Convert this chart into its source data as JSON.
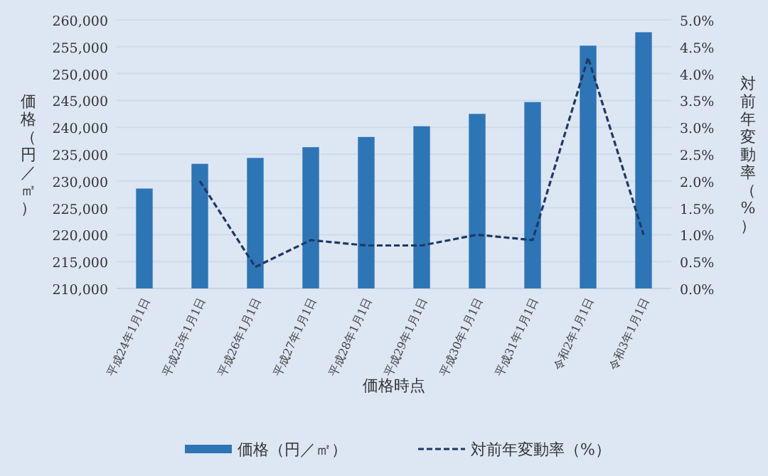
{
  "chart_data": {
    "type": "bar",
    "xlabel": "価格時点",
    "ylabel": "価格（円／㎡）",
    "y2label": "対前年変動率（%）",
    "categories": [
      "平成24年1月1日",
      "平成25年1月1日",
      "平成26年1月1日",
      "平成27年1月1日",
      "平成28年1月1日",
      "平成29年1月1日",
      "平成30年1月1日",
      "平成31年1月1日",
      "令和2年1月1日",
      "令和3年1月1日"
    ],
    "series": [
      {
        "name": "価格（円／㎡）",
        "color": "#2e75b6",
        "values": [
          228600,
          233200,
          234300,
          236300,
          238200,
          240200,
          242500,
          244700,
          255200,
          257700
        ]
      },
      {
        "name": "対前年変動率（%）",
        "type": "line",
        "axis": "y2",
        "color": "#1f3864",
        "line_style": "dashed",
        "marker": "none",
        "values": [
          null,
          2.0,
          0.4,
          0.9,
          0.8,
          0.8,
          1.0,
          0.9,
          4.3,
          1.0
        ]
      }
    ],
    "ylim": [
      210000,
      260000
    ],
    "yticks": [
      {
        "value": 210000,
        "label": "210,000"
      },
      {
        "value": 215000,
        "label": "215,000"
      },
      {
        "value": 220000,
        "label": "220,000"
      },
      {
        "value": 225000,
        "label": "225,000"
      },
      {
        "value": 230000,
        "label": "230,000"
      },
      {
        "value": 235000,
        "label": "235,000"
      },
      {
        "value": 240000,
        "label": "240,000"
      },
      {
        "value": 245000,
        "label": "245,000"
      },
      {
        "value": 250000,
        "label": "250,000"
      },
      {
        "value": 255000,
        "label": "255,000"
      },
      {
        "value": 260000,
        "label": "260,000"
      }
    ],
    "y2lim": [
      0,
      5
    ],
    "y2ticks": [
      {
        "value": 0,
        "label": "0.0%"
      },
      {
        "value": 0.5,
        "label": "0.5%"
      },
      {
        "value": 1,
        "label": "1.0%"
      },
      {
        "value": 1.5,
        "label": "1.5%"
      },
      {
        "value": 2,
        "label": "2.0%"
      },
      {
        "value": 2.5,
        "label": "2.5%"
      },
      {
        "value": 3,
        "label": "3.0%"
      },
      {
        "value": 3.5,
        "label": "3.5%"
      },
      {
        "value": 4,
        "label": "4.0%"
      },
      {
        "value": 4.5,
        "label": "4.5%"
      },
      {
        "value": 5,
        "label": "5.0%"
      }
    ],
    "grid": "y",
    "legend": "bottom"
  }
}
